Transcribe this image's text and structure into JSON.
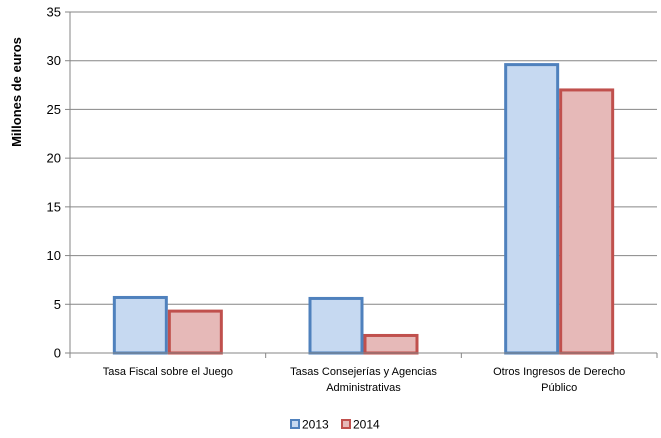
{
  "chart_data": {
    "type": "bar",
    "categories": [
      [
        "Tasa Fiscal sobre el Juego"
      ],
      [
        "Tasas Consejerías y Agencias",
        "Administrativas"
      ],
      [
        "Otros Ingresos de Derecho",
        "Público"
      ]
    ],
    "series": [
      {
        "name": "2013",
        "values": [
          5.7,
          5.6,
          29.6
        ],
        "fill": "#c6d9f1",
        "stroke": "#4f81bd"
      },
      {
        "name": "2014",
        "values": [
          4.3,
          1.8,
          27.0
        ],
        "fill": "#e6b9b8",
        "stroke": "#c0504d"
      }
    ],
    "title": "",
    "xlabel": "",
    "ylabel": "Millones de euros",
    "ylim": [
      0,
      35
    ],
    "yticks": [
      0,
      5,
      10,
      15,
      20,
      25,
      30,
      35
    ],
    "grid": true,
    "legend": "bottom",
    "colors": {
      "gridline": "#868686",
      "axis": "#868686"
    }
  }
}
